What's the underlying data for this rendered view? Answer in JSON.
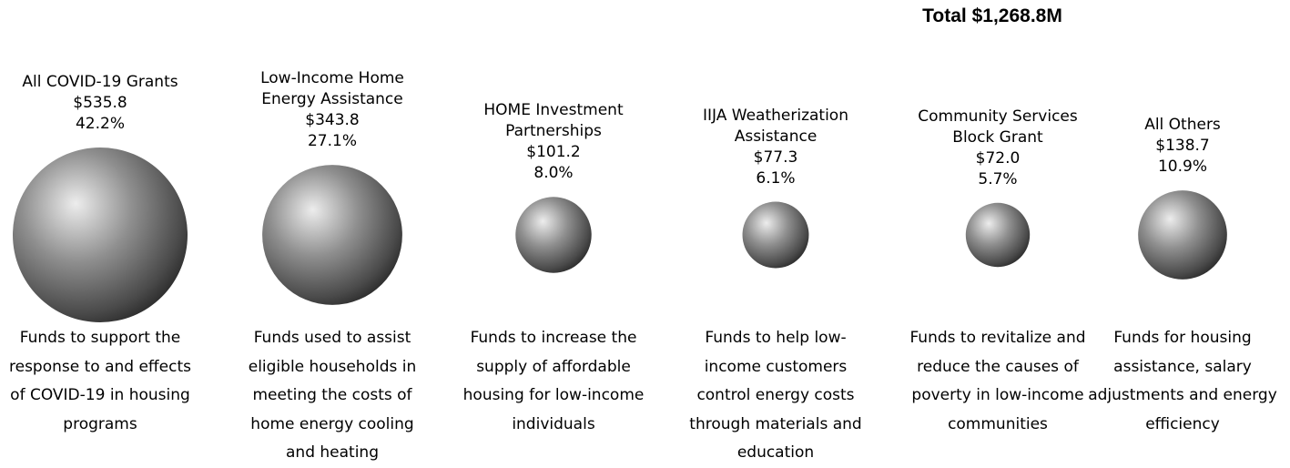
{
  "chart_data": {
    "type": "bubble",
    "title": "Total $1,268.8M",
    "categories": [
      "All COVID-19 Grants",
      "Low-Income Home Energy Assistance",
      "HOME Investment Partnerships",
      "IIJA Weatherization Assistance",
      "Community Services Block Grant",
      "All Others"
    ],
    "values": [
      535.8,
      343.8,
      101.2,
      77.3,
      72.0,
      138.7
    ],
    "value_labels": [
      "$535.8",
      "$343.8",
      "$101.2",
      "$77.3",
      "$72.0",
      "$138.7"
    ],
    "percent_labels": [
      "42.2%",
      "27.1%",
      "8.0%",
      "6.1%",
      "5.7%",
      "10.9%"
    ],
    "descriptions": [
      "Funds to support the response to and effects of COVID-19 in housing programs",
      "Funds used to assist eligible households in meeting the costs of home energy cooling and heating",
      "Funds to increase the supply of affordable housing for low-income individuals",
      "Funds to help low-income customers control energy costs through materials and education",
      "Funds to revitalize and reduce the causes of poverty in low-income communities",
      "Funds for housing assistance, salary adjustments and energy efficiency"
    ],
    "color": "#8a8a8a"
  }
}
